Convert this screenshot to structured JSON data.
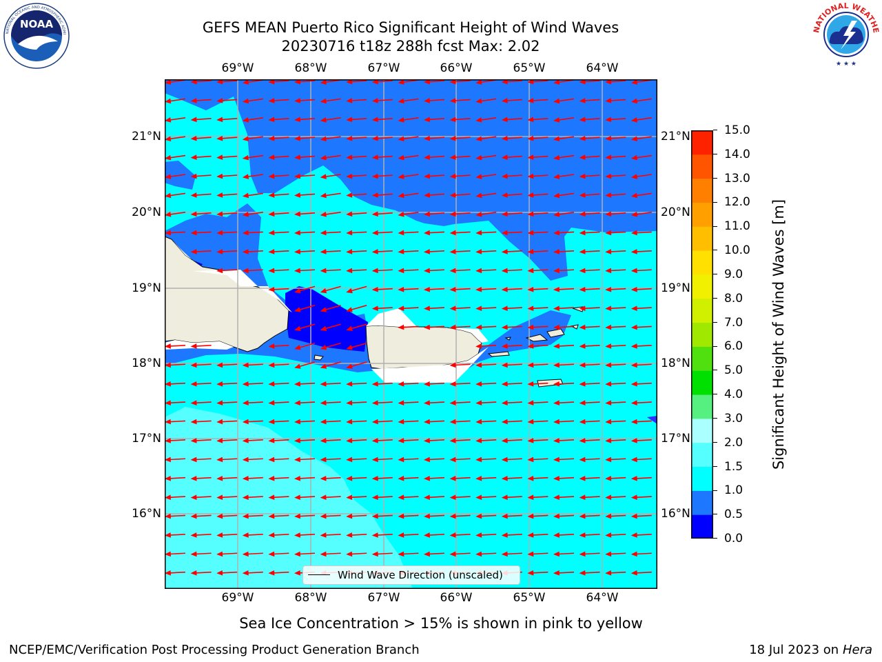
{
  "title": {
    "line1": "GEFS MEAN Puerto Rico Significant Height of Wind Waves",
    "line2": "20230716 t18z 288h fcst   Max: 2.02"
  },
  "map": {
    "lon_labels": [
      "69°W",
      "68°W",
      "67°W",
      "66°W",
      "65°W",
      "64°W"
    ],
    "lat_labels": [
      "21°N",
      "20°N",
      "19°N",
      "18°N",
      "17°N",
      "16°N"
    ],
    "ocean_colors": {
      "band_0_0_5": "#0000ff",
      "band_0_5_1_0": "#1e78ff",
      "band_1_0_1_5": "#00ffff",
      "band_1_5_2_0": "#55ffff",
      "land": "#efedde",
      "arrows": "#ff0000",
      "grid": "#b0b0b0"
    },
    "wind_wave_direction": "westward",
    "legend_label": "Wind Wave Direction (unscaled)"
  },
  "colorbar": {
    "ticks": [
      "0.0",
      "0.5",
      "1.0",
      "1.5",
      "2.0",
      "3.0",
      "4.0",
      "5.0",
      "6.0",
      "7.0",
      "8.0",
      "9.0",
      "10.0",
      "11.0",
      "12.0",
      "13.0",
      "14.0",
      "15.0"
    ],
    "colors": [
      "#0000ff",
      "#1e78ff",
      "#00ffff",
      "#55ffff",
      "#aaffff",
      "#55f080",
      "#00e000",
      "#50e010",
      "#a0e800",
      "#d0f000",
      "#f0f000",
      "#ffe000",
      "#ffbf00",
      "#ff9f00",
      "#ff7f00",
      "#ff5500",
      "#ff2200"
    ],
    "label": "Significant Height of Wind Waves [m]"
  },
  "footnote": "Sea Ice Concentration > 15% is shown in pink to yellow",
  "footer": {
    "left": "NCEP/EMC/Verification Post Processing Product Generation Branch",
    "right_prefix": "18 Jul 2023 on ",
    "right_host": "Hera"
  },
  "logos": {
    "noaa_text": "NOAA",
    "noaa_ring_text": "NATIONAL OCEANIC AND ATMOSPHERIC ADMINISTRATION",
    "noaa_ring_bottom": "U.S. DEPARTMENT OF COMMERCE",
    "nws_ring_text": "NATIONAL WEATHER SERVICE"
  }
}
